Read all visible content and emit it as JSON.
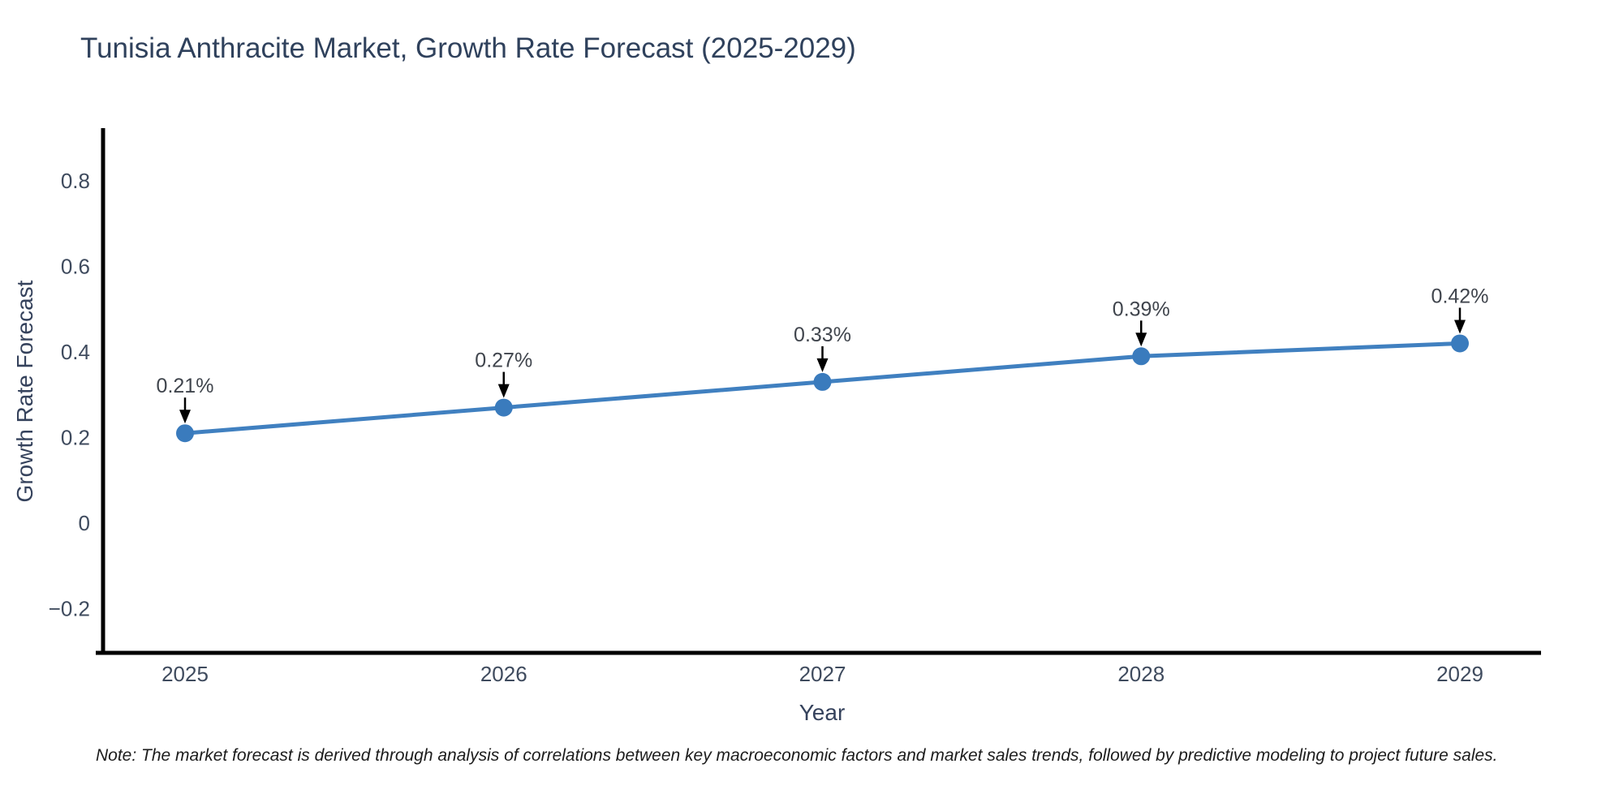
{
  "chart_data": {
    "type": "line",
    "title": "Tunisia Anthracite Market, Growth Rate Forecast (2025-2029)",
    "xlabel": "Year",
    "ylabel": "Growth Rate Forecast",
    "x": [
      2025,
      2026,
      2027,
      2028,
      2029
    ],
    "x_tick_labels": [
      "2025",
      "2026",
      "2027",
      "2028",
      "2029"
    ],
    "values": [
      0.21,
      0.27,
      0.33,
      0.39,
      0.42
    ],
    "point_labels": [
      "0.21%",
      "0.27%",
      "0.33%",
      "0.39%",
      "0.42%"
    ],
    "y_ticks": [
      0.8,
      0.6,
      0.4,
      0.2,
      0,
      -0.2
    ],
    "y_tick_labels": [
      "0.8",
      "0.6",
      "0.4",
      "0.2",
      "0",
      "−0.2"
    ],
    "ylim": [
      -0.3,
      0.92
    ],
    "grid": false,
    "legend_position": "none",
    "note": "Note: The market forecast is derived through analysis of correlations between key macroeconomic factors and market sales trends, followed by predictive modeling to project future sales.",
    "colors": {
      "line": "#4080c0",
      "marker": "#3a7bbd",
      "axis": "#000000",
      "tick_label": "#3f4b5e",
      "axis_title": "#35425c",
      "title": "#2f415c",
      "annotation_text": "#40454d",
      "annotation_arrow": "#000000",
      "note_text": "#1c1c1c",
      "background": "#ffffff"
    }
  }
}
